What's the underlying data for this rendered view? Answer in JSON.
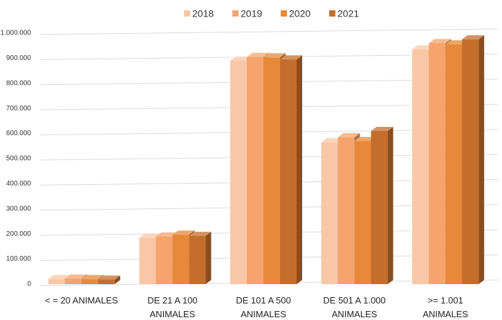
{
  "chart_data": {
    "type": "bar3d",
    "categories": [
      "< = 20 ANIMALES",
      "DE 21 A 100 ANIMALES",
      "DE 101 A 500 ANIMALES",
      "DE 501 A 1.000 ANIMALES",
      ">= 1.001 ANIMALES"
    ],
    "series": [
      {
        "name": "2018",
        "color": "#f9c7a5",
        "values": [
          20000,
          185000,
          890000,
          565000,
          935000
        ]
      },
      {
        "name": "2019",
        "color": "#f5a46e",
        "values": [
          22000,
          190000,
          905000,
          585000,
          960000
        ]
      },
      {
        "name": "2020",
        "color": "#e8893a",
        "values": [
          20000,
          197000,
          903000,
          570000,
          955000
        ]
      },
      {
        "name": "2021",
        "color": "#c46e2d",
        "values": [
          18000,
          192000,
          895000,
          610000,
          975000
        ]
      }
    ],
    "ylim": [
      0,
      1000000
    ],
    "yticks": [
      0,
      {
        "value": 100000,
        "label": "100.000"
      },
      {
        "value": 200000,
        "label": "200.000"
      },
      {
        "value": 300000,
        "label": "300.000"
      },
      {
        "value": 400000,
        "label": "400.000"
      },
      {
        "value": 500000,
        "label": "500.000"
      },
      {
        "value": 600000,
        "label": "600.000"
      },
      {
        "value": 700000,
        "label": "700.000"
      },
      {
        "value": 800000,
        "label": "800.000"
      },
      {
        "value": 900000,
        "label": "900.000"
      },
      {
        "value": 1000000,
        "label": "1.000.000"
      }
    ],
    "grid": true
  }
}
